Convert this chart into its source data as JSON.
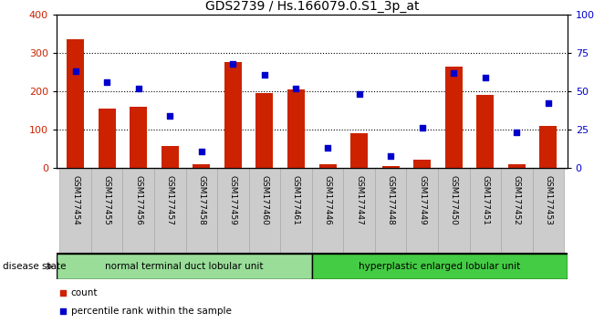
{
  "title": "GDS2739 / Hs.166079.0.S1_3p_at",
  "samples": [
    "GSM177454",
    "GSM177455",
    "GSM177456",
    "GSM177457",
    "GSM177458",
    "GSM177459",
    "GSM177460",
    "GSM177461",
    "GSM177446",
    "GSM177447",
    "GSM177448",
    "GSM177449",
    "GSM177450",
    "GSM177451",
    "GSM177452",
    "GSM177453"
  ],
  "counts": [
    335,
    155,
    160,
    57,
    10,
    275,
    195,
    205,
    10,
    90,
    5,
    22,
    265,
    190,
    10,
    110
  ],
  "percentiles": [
    63,
    56,
    52,
    34,
    11,
    68,
    61,
    52,
    13,
    48,
    8,
    26,
    62,
    59,
    23,
    42
  ],
  "group1_label": "normal terminal duct lobular unit",
  "group2_label": "hyperplastic enlarged lobular unit",
  "group1_count": 8,
  "group2_count": 8,
  "bar_color": "#cc2200",
  "dot_color": "#0000cc",
  "ylim_left": [
    0,
    400
  ],
  "ylim_right": [
    0,
    100
  ],
  "yticks_left": [
    0,
    100,
    200,
    300,
    400
  ],
  "yticks_right": [
    0,
    25,
    50,
    75,
    100
  ],
  "yticklabels_right": [
    "0",
    "25",
    "50",
    "75",
    "100%"
  ],
  "group1_color": "#99dd99",
  "group2_color": "#44cc44",
  "bar_width": 0.55,
  "legend_count_label": "count",
  "legend_percentile_label": "percentile rank within the sample",
  "tick_box_color": "#cccccc",
  "tick_box_edge": "#aaaaaa"
}
